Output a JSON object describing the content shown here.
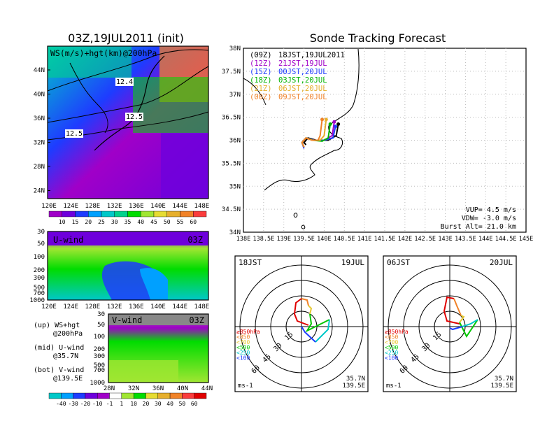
{
  "left_title": "03Z,19JUL2011 (init)",
  "right_title": "Sonde Tracking Forecast",
  "map_panel": {
    "label": "WS(m/s)+hgt(km)@200hPa",
    "contour_labels": [
      "12.4",
      "12.5",
      "12.5"
    ],
    "lat_ticks": [
      "44N",
      "40N",
      "36N",
      "32N",
      "28N",
      "24N"
    ],
    "lon_ticks": [
      "120E",
      "124E",
      "128E",
      "132E",
      "136E",
      "140E",
      "144E",
      "148E"
    ],
    "colorbar_labels": [
      "10",
      "15",
      "20",
      "25",
      "30",
      "35",
      "40",
      "45",
      "50",
      "55",
      "60"
    ],
    "colors": [
      "#a000c8",
      "#6e00dc",
      "#1e3cff",
      "#00a0ff",
      "#00c8c8",
      "#00d28c",
      "#00dc00",
      "#a0e632",
      "#e6dc32",
      "#e6af2d",
      "#f08228",
      "#fa3c3c"
    ]
  },
  "u_panel": {
    "label": "U-wind",
    "time": "03Z",
    "y_ticks": [
      "30",
      "50",
      "100",
      "200",
      "300",
      "500",
      "700",
      "1000"
    ],
    "x_ticks": [
      "120E",
      "124E",
      "128E",
      "132E",
      "136E",
      "140E",
      "144E",
      "148E"
    ]
  },
  "v_panel": {
    "label": "V-wind",
    "time": "03Z",
    "y_ticks": [
      "30",
      "50",
      "100",
      "200",
      "300",
      "500",
      "700",
      "1000"
    ],
    "x_ticks": [
      "28N",
      "32N",
      "36N",
      "40N",
      "44N"
    ],
    "colorbar_labels": [
      "-40",
      "-30",
      "-20",
      "-10",
      "-1",
      "1",
      "10",
      "20",
      "30",
      "40",
      "50",
      "60"
    ]
  },
  "notes": [
    {
      "key": "(up) WS+hgt",
      "sub": "@200hPa"
    },
    {
      "key": "(mid) U-wind",
      "sub": "@35.7N"
    },
    {
      "key": "(bot) V-wind",
      "sub": "@139.5E"
    }
  ],
  "track_map": {
    "lat_ticks": [
      "38N",
      "37.5N",
      "37N",
      "36.5N",
      "36N",
      "35.5N",
      "35N",
      "34.5N",
      "34N"
    ],
    "lon_ticks": [
      "138E",
      "138.5E",
      "139E",
      "139.5E",
      "140E",
      "140.5E",
      "141E",
      "141.5E",
      "142E",
      "142.5E",
      "143E",
      "143.5E",
      "144E",
      "144.5E",
      "145E"
    ],
    "legend": [
      {
        "code": "(09Z)",
        "time": "18JST,19JUL2011",
        "color": "#000000"
      },
      {
        "code": "(12Z)",
        "time": "21JST,19JUL",
        "color": "#a000c8"
      },
      {
        "code": "(15Z)",
        "time": "00JST,20JUL",
        "color": "#1e3cff"
      },
      {
        "code": "(18Z)",
        "time": "03JST,20JUL",
        "color": "#00b400"
      },
      {
        "code": "(21Z)",
        "time": "06JST,20JUL",
        "color": "#e6af2d"
      },
      {
        "code": "(00Z)",
        "time": "09JST,20JUL",
        "color": "#f08228"
      }
    ],
    "vup": "VUP= 4.5 m/s",
    "vdw": "VDW= -3.0 m/s",
    "burst": "Burst Alt= 21.0 km"
  },
  "hodo_left": {
    "time": "18JST",
    "date": "19JUL",
    "ring_labels": [
      "15",
      "30",
      "45",
      "60"
    ],
    "level_legend": [
      "≥850hPa",
      "<850",
      "<700",
      "<500",
      "<250",
      "<100"
    ],
    "level_colors": [
      "#e00000",
      "#f08228",
      "#e6c832",
      "#00c800",
      "#00c8c8",
      "#1e3cff"
    ],
    "units": "ms-1",
    "lat": "35.7N",
    "lon": "139.5E"
  },
  "hodo_right": {
    "time": "06JST",
    "date": "20JUL",
    "ring_labels": [
      "15",
      "30",
      "45",
      "60"
    ],
    "level_legend": [
      "≥850hPa",
      "<850",
      "<700",
      "<500",
      "<250",
      "<100"
    ],
    "level_colors": [
      "#e00000",
      "#f08228",
      "#e6c832",
      "#00c800",
      "#00c8c8",
      "#1e3cff"
    ],
    "units": "ms-1",
    "lat": "35.7N",
    "lon": "139.5E"
  },
  "chart_data": [
    {
      "type": "line",
      "title": "Sonde Tracking Forecast",
      "xlabel": "",
      "ylabel": "",
      "xlim": [
        138,
        145
      ],
      "ylim": [
        34,
        38
      ],
      "series": [
        {
          "name": "(09Z) 18JST,19JUL2011",
          "x": [
            140.35,
            140.3,
            140.1,
            139.8,
            139.6,
            139.5,
            139.55
          ],
          "y": [
            36.35,
            36.1,
            36.0,
            36.0,
            36.05,
            35.95,
            35.9
          ]
        },
        {
          "name": "(12Z) 21JST,19JUL",
          "x": [
            140.25,
            140.2,
            140.0,
            139.75,
            139.55,
            139.45,
            139.5
          ],
          "y": [
            36.4,
            36.1,
            36.0,
            36.0,
            36.05,
            35.95,
            35.85
          ]
        },
        {
          "name": "(15Z) 00JST,20JUL",
          "x": [
            140.28,
            140.22,
            140.0,
            139.75,
            139.55,
            139.45,
            139.5
          ],
          "y": [
            36.3,
            36.05,
            36.0,
            36.0,
            36.05,
            35.95,
            35.82
          ]
        },
        {
          "name": "(18Z) 03JST,20JUL",
          "x": [
            140.15,
            140.1,
            139.95,
            139.72,
            139.55,
            139.45,
            139.5
          ],
          "y": [
            36.35,
            36.05,
            35.98,
            36.0,
            36.05,
            35.95,
            35.85
          ]
        },
        {
          "name": "(21Z) 06JST,20JUL",
          "x": [
            140.05,
            140.0,
            139.9,
            139.7,
            139.55,
            139.45,
            139.5
          ],
          "y": [
            36.45,
            36.1,
            36.0,
            36.0,
            36.05,
            35.95,
            35.85
          ]
        },
        {
          "name": "(00Z) 09JST,20JUL",
          "x": [
            139.95,
            139.9,
            139.85,
            139.7,
            139.55,
            139.45,
            139.5
          ],
          "y": [
            36.45,
            36.1,
            36.0,
            36.0,
            36.05,
            35.95,
            35.85
          ]
        }
      ]
    }
  ]
}
